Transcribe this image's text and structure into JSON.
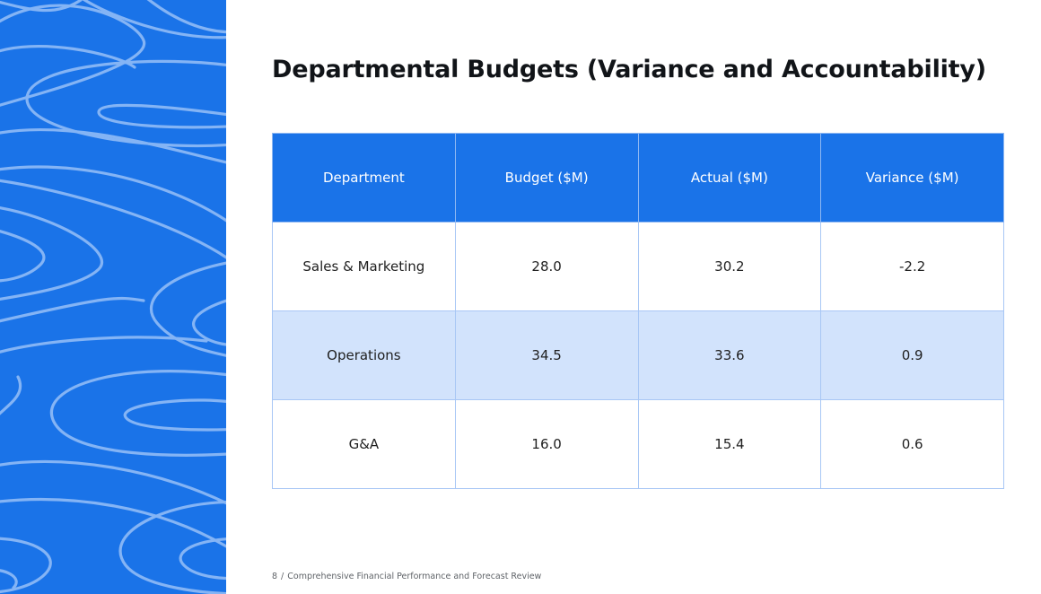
{
  "slide": {
    "title": "Departmental Budgets (Variance and Accountability)",
    "page_number": "8",
    "separator": "/",
    "footer_text": "Comprehensive Financial Performance and Forecast Review"
  },
  "table": {
    "headers": [
      "Department",
      "Budget ($M)",
      "Actual ($M)",
      "Variance ($M)"
    ],
    "rows": [
      [
        "Sales & Marketing",
        "28.0",
        "30.2",
        "-2.2"
      ],
      [
        "Operations",
        "34.5",
        "33.6",
        "0.9"
      ],
      [
        "G&A",
        "16.0",
        "15.4",
        "0.6"
      ]
    ]
  },
  "colors": {
    "accent": "#1a73e8",
    "shaded_row": "#d2e3fc",
    "border": "#a8c7f5"
  }
}
